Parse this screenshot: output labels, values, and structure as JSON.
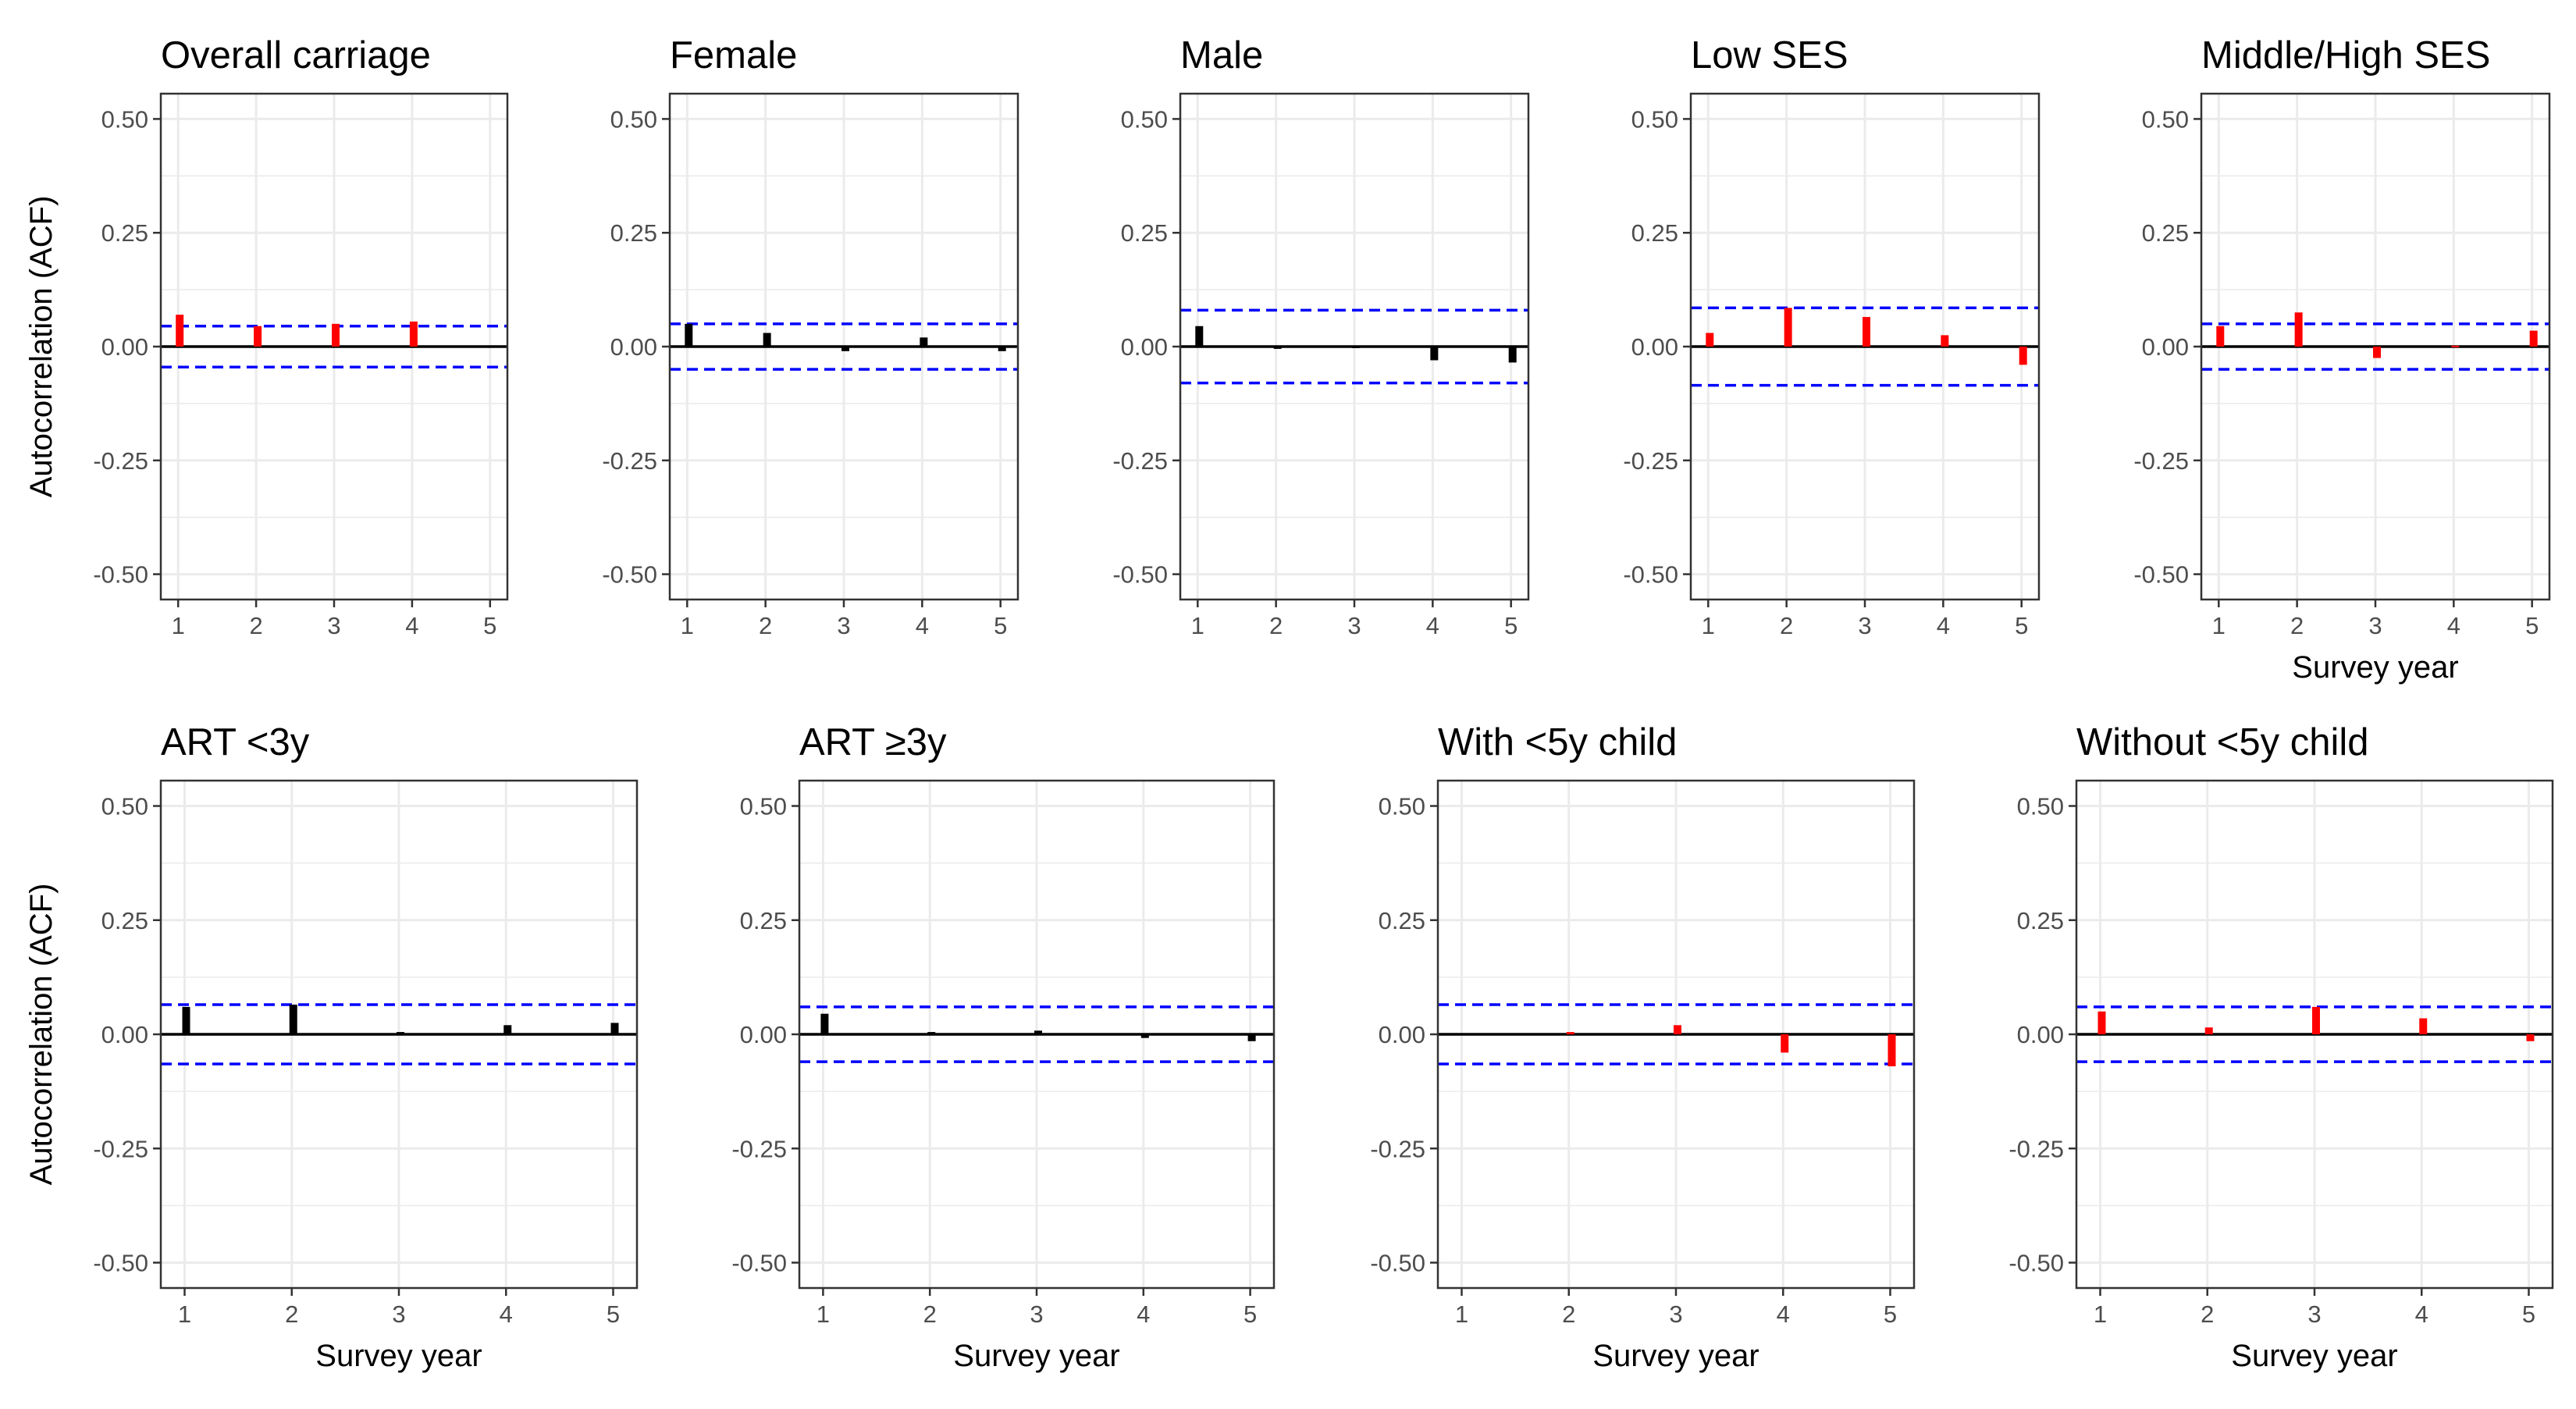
{
  "figure": {
    "ylabel": "Autocorrelation (ACF)",
    "xlabel": "Survey year"
  },
  "colors": {
    "significant_bar": "#FF0000",
    "nonsignificant_bar": "#000000",
    "confidence_band": "#0000FF",
    "zero_line": "#000000",
    "grid": "#EBEBEB",
    "panel_border": "#333333"
  },
  "chart_data": [
    {
      "type": "bar",
      "title": "Overall carriage",
      "xlabel": "",
      "ylabel": "Autocorrelation (ACF)",
      "ylim": [
        -0.5,
        0.5
      ],
      "yticks": [
        "0.50",
        "0.25",
        "0.00",
        "-0.25",
        "-0.50"
      ],
      "x": [
        1,
        2,
        3,
        4,
        5
      ],
      "lags": [
        1,
        2,
        3,
        4
      ],
      "acf": [
        0.07,
        0.045,
        0.05,
        0.055
      ],
      "ci": 0.045,
      "significant": [
        true,
        true,
        true,
        true
      ],
      "grid": true
    },
    {
      "type": "bar",
      "title": "Female",
      "xlabel": "",
      "ylabel": "",
      "ylim": [
        -0.5,
        0.5
      ],
      "yticks": [
        "0.50",
        "0.25",
        "0.00",
        "-0.25",
        "-0.50"
      ],
      "x": [
        1,
        2,
        3,
        4,
        5
      ],
      "lags": [
        1,
        2,
        3,
        4,
        5
      ],
      "acf": [
        0.05,
        0.03,
        -0.01,
        0.02,
        -0.01
      ],
      "ci": 0.05,
      "significant": [
        false,
        false,
        false,
        false,
        false
      ],
      "grid": true
    },
    {
      "type": "bar",
      "title": "Male",
      "xlabel": "",
      "ylabel": "",
      "ylim": [
        -0.5,
        0.5
      ],
      "yticks": [
        "0.50",
        "0.25",
        "0.00",
        "-0.25",
        "-0.50"
      ],
      "x": [
        1,
        2,
        3,
        4,
        5
      ],
      "lags": [
        1,
        2,
        3,
        4,
        5
      ],
      "acf": [
        0.045,
        -0.005,
        -0.003,
        -0.03,
        -0.035
      ],
      "ci": 0.08,
      "significant": [
        false,
        false,
        false,
        false,
        false
      ],
      "grid": true
    },
    {
      "type": "bar",
      "title": "Low SES",
      "xlabel": "",
      "ylabel": "",
      "ylim": [
        -0.5,
        0.5
      ],
      "yticks": [
        "0.50",
        "0.25",
        "0.00",
        "-0.25",
        "-0.50"
      ],
      "x": [
        1,
        2,
        3,
        4,
        5
      ],
      "lags": [
        1,
        2,
        3,
        4,
        5
      ],
      "acf": [
        0.03,
        0.085,
        0.065,
        0.025,
        -0.04
      ],
      "ci": 0.085,
      "significant": [
        true,
        true,
        true,
        true,
        true
      ],
      "grid": true
    },
    {
      "type": "bar",
      "title": "Middle/High SES",
      "xlabel": "Survey year",
      "ylabel": "",
      "ylim": [
        -0.5,
        0.5
      ],
      "yticks": [
        "0.50",
        "0.25",
        "0.00",
        "-0.25",
        "-0.50"
      ],
      "x": [
        1,
        2,
        3,
        4,
        5
      ],
      "lags": [
        1,
        2,
        3,
        4,
        5
      ],
      "acf": [
        0.045,
        0.075,
        -0.025,
        0.002,
        0.035
      ],
      "ci": 0.05,
      "significant": [
        true,
        true,
        true,
        true,
        true
      ],
      "grid": true
    },
    {
      "type": "bar",
      "title": "ART <3y",
      "xlabel": "Survey year",
      "ylabel": "Autocorrelation (ACF)",
      "ylim": [
        -0.5,
        0.5
      ],
      "yticks": [
        "0.50",
        "0.25",
        "0.00",
        "-0.25",
        "-0.50"
      ],
      "x": [
        1,
        2,
        3,
        4,
        5
      ],
      "lags": [
        1,
        2,
        3,
        4,
        5
      ],
      "acf": [
        0.06,
        0.065,
        0.005,
        0.02,
        0.025
      ],
      "ci": 0.065,
      "significant": [
        false,
        false,
        false,
        false,
        false
      ],
      "grid": true
    },
    {
      "type": "bar",
      "title": "ART ≥3y",
      "xlabel": "Survey year",
      "ylabel": "",
      "ylim": [
        -0.5,
        0.5
      ],
      "yticks": [
        "0.50",
        "0.25",
        "0.00",
        "-0.25",
        "-0.50"
      ],
      "x": [
        1,
        2,
        3,
        4,
        5
      ],
      "lags": [
        1,
        2,
        3,
        4,
        5
      ],
      "acf": [
        0.045,
        0.005,
        0.008,
        -0.008,
        -0.015
      ],
      "ci": 0.06,
      "significant": [
        false,
        false,
        false,
        false,
        false
      ],
      "grid": true
    },
    {
      "type": "bar",
      "title": "With <5y child",
      "xlabel": "Survey year",
      "ylabel": "",
      "ylim": [
        -0.5,
        0.5
      ],
      "yticks": [
        "0.50",
        "0.25",
        "0.00",
        "-0.25",
        "-0.50"
      ],
      "x": [
        1,
        2,
        3,
        4,
        5
      ],
      "lags": [
        2,
        3,
        4,
        5
      ],
      "acf": [
        0.005,
        0.02,
        -0.04,
        -0.07
      ],
      "ci": 0.065,
      "significant": [
        true,
        true,
        true,
        true
      ],
      "grid": true
    },
    {
      "type": "bar",
      "title": "Without <5y child",
      "xlabel": "Survey year",
      "ylabel": "",
      "ylim": [
        -0.5,
        0.5
      ],
      "yticks": [
        "0.50",
        "0.25",
        "0.00",
        "-0.25",
        "-0.50"
      ],
      "x": [
        1,
        2,
        3,
        4,
        5
      ],
      "lags": [
        1,
        2,
        3,
        4,
        5
      ],
      "acf": [
        0.05,
        0.015,
        0.06,
        0.035,
        -0.015
      ],
      "ci": 0.06,
      "significant": [
        true,
        true,
        true,
        true,
        true
      ],
      "grid": true
    }
  ]
}
